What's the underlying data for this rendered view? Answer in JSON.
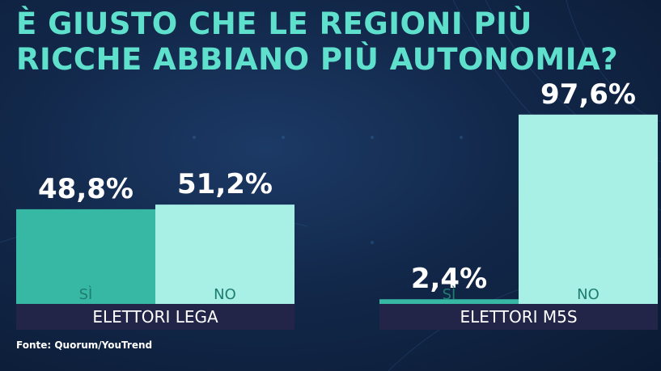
{
  "title": "È GIUSTO CHE LE REGIONI PIÙ RICCHE ABBIANO PIÙ AUTONOMIA?",
  "source": "Fonte: Quorum/YouTrend",
  "colors": {
    "si": "#36b8a5",
    "no": "#a8f0e6",
    "label_band": "#222548",
    "title": "#5ee0cc"
  },
  "chart_data": [
    {
      "type": "bar",
      "group": "ELETTORI LEGA",
      "categories": [
        "SÌ",
        "NO"
      ],
      "values": [
        48.8,
        51.2
      ],
      "value_labels": [
        "48,8%",
        "51,2%"
      ],
      "ylim": [
        0,
        100
      ]
    },
    {
      "type": "bar",
      "group": "ELETTORI M5S",
      "categories": [
        "SÌ",
        "NO"
      ],
      "values": [
        2.4,
        97.6
      ],
      "value_labels": [
        "2,4%",
        "97,6%"
      ],
      "ylim": [
        0,
        100
      ]
    }
  ]
}
